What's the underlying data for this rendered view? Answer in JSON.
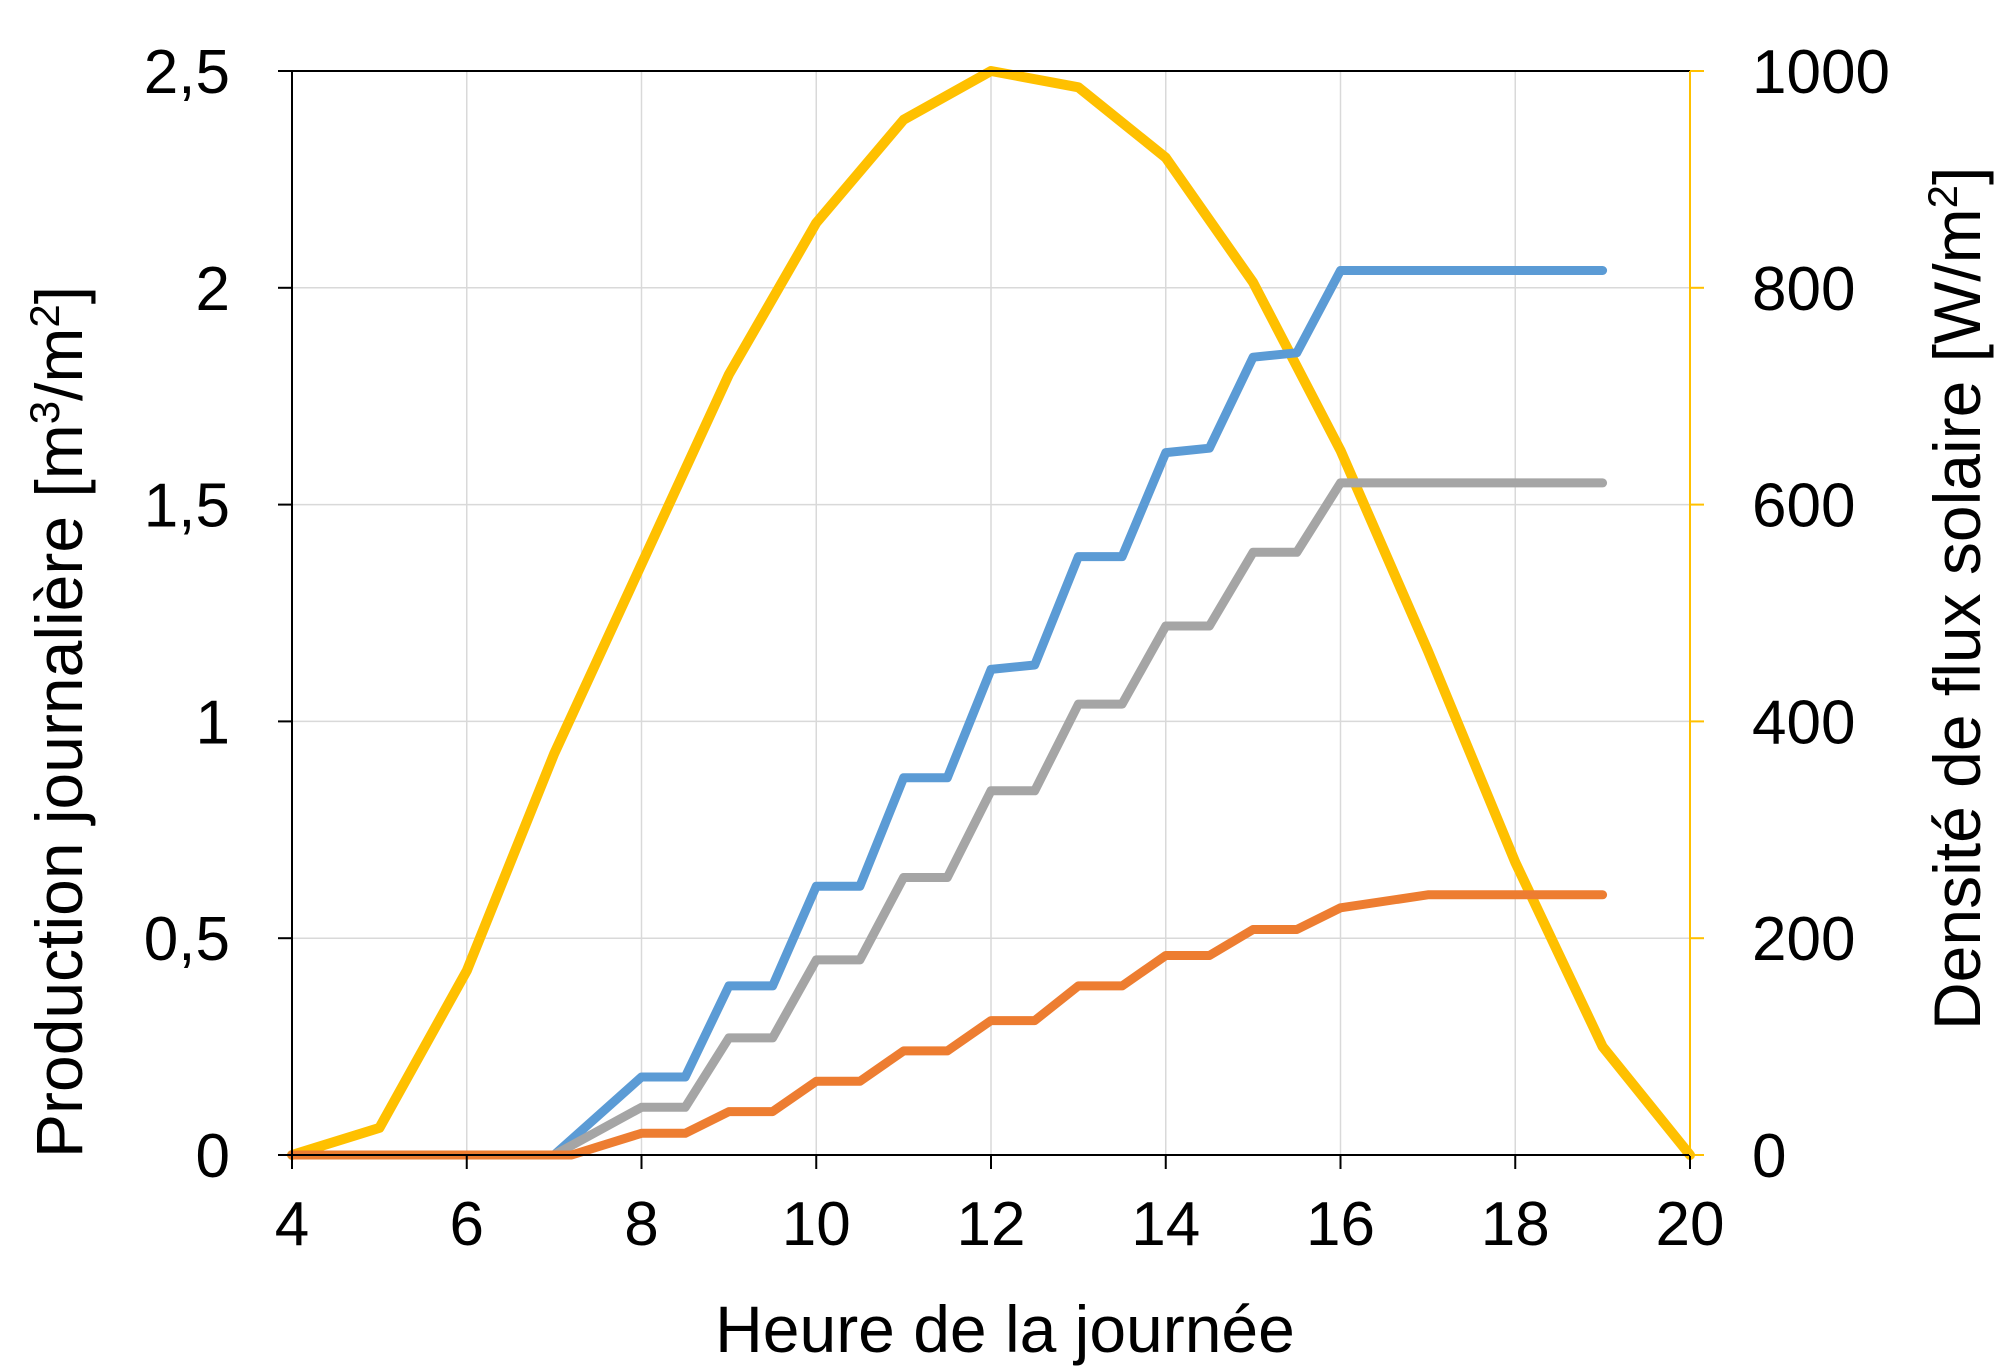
{
  "chart_data": {
    "type": "line",
    "xlabel": "Heure de la journée",
    "ylabel_left": {
      "prefix": "Production journalière [m",
      "exp1": "3",
      "mid": "/m",
      "exp2": "2",
      "suffix": "]"
    },
    "ylabel_right": {
      "prefix": "Densité de flux solaire [W/m",
      "exp": "2",
      "suffix": "]"
    },
    "xlim": [
      4,
      20
    ],
    "ylim_left": [
      0,
      2.5
    ],
    "ylim_right": [
      0,
      1000
    ],
    "x_ticks": [
      "4",
      "6",
      "8",
      "10",
      "12",
      "14",
      "16",
      "18",
      "20"
    ],
    "y_left_ticks": [
      "0",
      "0,5",
      "1",
      "1,5",
      "2",
      "2,5"
    ],
    "y_right_ticks": [
      "0",
      "200",
      "400",
      "600",
      "800",
      "1000"
    ],
    "grid": true,
    "colors": {
      "solar": "#ffc000",
      "blue": "#5b9bd5",
      "gray": "#a5a5a5",
      "orange": "#ed7d31",
      "right_axis": "#ffc000"
    },
    "series": [
      {
        "axis": "right",
        "color": "#ffc000",
        "x": [
          4,
          5,
          6,
          7,
          8,
          9,
          10,
          11,
          12,
          13,
          14,
          15,
          16,
          17,
          18,
          19,
          20
        ],
        "y": [
          0,
          25,
          170,
          370,
          545,
          720,
          860,
          955,
          1000,
          985,
          920,
          805,
          650,
          465,
          270,
          100,
          0
        ]
      },
      {
        "axis": "left",
        "color": "#5b9bd5",
        "x": [
          4,
          7,
          8,
          8.5,
          9,
          9.5,
          10,
          10.5,
          11,
          11.5,
          12,
          12.5,
          13,
          13.5,
          14,
          14.5,
          15,
          15.5,
          16,
          19
        ],
        "y": [
          0,
          0,
          0.18,
          0.18,
          0.39,
          0.39,
          0.62,
          0.62,
          0.87,
          0.87,
          1.12,
          1.13,
          1.38,
          1.38,
          1.62,
          1.63,
          1.84,
          1.85,
          2.04,
          2.04
        ]
      },
      {
        "axis": "left",
        "color": "#a5a5a5",
        "x": [
          4,
          7,
          8,
          8.5,
          9,
          9.5,
          10,
          10.5,
          11,
          11.5,
          12,
          12.5,
          13,
          13.5,
          14,
          14.5,
          15,
          15.5,
          16,
          19
        ],
        "y": [
          0,
          0,
          0.11,
          0.11,
          0.27,
          0.27,
          0.45,
          0.45,
          0.64,
          0.64,
          0.84,
          0.84,
          1.04,
          1.04,
          1.22,
          1.22,
          1.39,
          1.39,
          1.55,
          1.55
        ]
      },
      {
        "axis": "left",
        "color": "#ed7d31",
        "x": [
          4,
          7.2,
          8,
          8.5,
          9,
          9.5,
          10,
          10.5,
          11,
          11.5,
          12,
          12.5,
          13,
          13.5,
          14,
          14.5,
          15,
          15.5,
          16,
          17,
          19
        ],
        "y": [
          0,
          0,
          0.05,
          0.05,
          0.1,
          0.1,
          0.17,
          0.17,
          0.24,
          0.24,
          0.31,
          0.31,
          0.39,
          0.39,
          0.46,
          0.46,
          0.52,
          0.52,
          0.57,
          0.6,
          0.6
        ]
      }
    ]
  }
}
